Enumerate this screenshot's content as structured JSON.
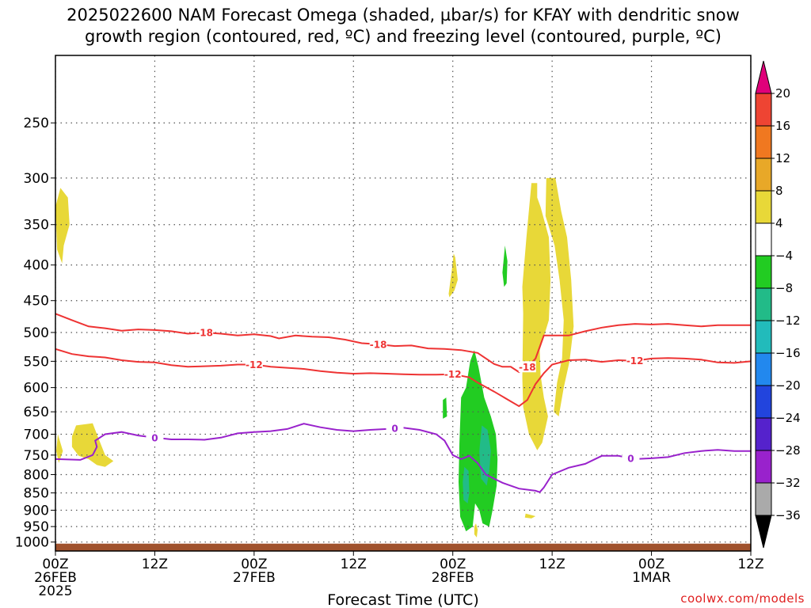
{
  "chart_data": {
    "type": "time-pressure cross-section",
    "title": [
      "2025022600 NAM Forecast Omega (shaded, µbar/s) for KFAY with dendritic snow",
      "growth region (contoured, red, ºC) and freezing level (contoured, purple, ºC)"
    ],
    "xlabel": "Forecast Time (UTC)",
    "credit": "coolwx.com/models",
    "x_range_hours": [
      0,
      84
    ],
    "y_range_hpa": [
      200,
      1030
    ],
    "y_scale": "log",
    "x_ticks": [
      {
        "h": 0,
        "l1": "00Z",
        "l2": "26FEB",
        "l3": "2025"
      },
      {
        "h": 12,
        "l1": "12Z",
        "l2": "",
        "l3": ""
      },
      {
        "h": 24,
        "l1": "00Z",
        "l2": "27FEB",
        "l3": ""
      },
      {
        "h": 36,
        "l1": "12Z",
        "l2": "",
        "l3": ""
      },
      {
        "h": 48,
        "l1": "00Z",
        "l2": "28FEB",
        "l3": ""
      },
      {
        "h": 60,
        "l1": "12Z",
        "l2": "",
        "l3": ""
      },
      {
        "h": 72,
        "l1": "00Z",
        "l2": "1MAR",
        "l3": ""
      },
      {
        "h": 84,
        "l1": "12Z",
        "l2": "",
        "l3": ""
      }
    ],
    "y_ticks": [
      250,
      300,
      350,
      400,
      450,
      500,
      550,
      600,
      650,
      700,
      750,
      800,
      850,
      900,
      950,
      1000
    ],
    "grid": true,
    "colorbar": {
      "labels": [
        "20",
        "16",
        "12",
        "8",
        "4",
        "−4",
        "−8",
        "−12",
        "−16",
        "−20",
        "−24",
        "−28",
        "−32",
        "−36"
      ],
      "bins": [
        {
          "color": "#e0007a",
          "shape": "arrow-up"
        },
        {
          "color": "#ee4433"
        },
        {
          "color": "#f07820"
        },
        {
          "color": "#e8a828"
        },
        {
          "color": "#e8d838"
        },
        {
          "color": "#ffffff"
        },
        {
          "color": "#22cc22"
        },
        {
          "color": "#22bb88"
        },
        {
          "color": "#22bbbb"
        },
        {
          "color": "#2288ee"
        },
        {
          "color": "#2244dd"
        },
        {
          "color": "#5522cc"
        },
        {
          "color": "#9922cc"
        },
        {
          "color": "#aaaaaa"
        },
        {
          "color": "#000000",
          "shape": "arrow-down"
        }
      ]
    },
    "ground": {
      "p_hpa": 1000,
      "color": "#a0522d"
    },
    "contours": [
      {
        "label": "-18",
        "color": "#ee3333",
        "labels_at_h": [
          18,
          39,
          57
        ],
        "points": [
          [
            0,
            470
          ],
          [
            2,
            480
          ],
          [
            4,
            490
          ],
          [
            6,
            493
          ],
          [
            8,
            497
          ],
          [
            10,
            495
          ],
          [
            12,
            496
          ],
          [
            14,
            498
          ],
          [
            16,
            502
          ],
          [
            18,
            500
          ],
          [
            20,
            502
          ],
          [
            22,
            505
          ],
          [
            24,
            503
          ],
          [
            26,
            506
          ],
          [
            27,
            510
          ],
          [
            29,
            505
          ],
          [
            31,
            507
          ],
          [
            33,
            508
          ],
          [
            35,
            512
          ],
          [
            37,
            518
          ],
          [
            39,
            520
          ],
          [
            41,
            523
          ],
          [
            43,
            522
          ],
          [
            45,
            527
          ],
          [
            47,
            528
          ],
          [
            49,
            530
          ],
          [
            51,
            535
          ],
          [
            53,
            555
          ],
          [
            54,
            560
          ],
          [
            55,
            560
          ],
          [
            56,
            570
          ],
          [
            57,
            560
          ],
          [
            58,
            545
          ],
          [
            59,
            505
          ],
          [
            60,
            505
          ],
          [
            62,
            505
          ],
          [
            64,
            498
          ],
          [
            66,
            492
          ],
          [
            68,
            488
          ],
          [
            70,
            486
          ],
          [
            72,
            487
          ],
          [
            74,
            486
          ],
          [
            76,
            488
          ],
          [
            78,
            490
          ],
          [
            80,
            488
          ],
          [
            82,
            488
          ],
          [
            84,
            488
          ]
        ]
      },
      {
        "label": "-12",
        "color": "#ee3333",
        "labels_at_h": [
          24,
          48,
          70
        ],
        "points": [
          [
            0,
            528
          ],
          [
            2,
            537
          ],
          [
            4,
            541
          ],
          [
            6,
            543
          ],
          [
            8,
            548
          ],
          [
            10,
            551
          ],
          [
            12,
            552
          ],
          [
            14,
            557
          ],
          [
            16,
            560
          ],
          [
            18,
            559
          ],
          [
            20,
            558
          ],
          [
            22,
            556
          ],
          [
            24,
            556
          ],
          [
            26,
            560
          ],
          [
            28,
            562
          ],
          [
            30,
            564
          ],
          [
            32,
            568
          ],
          [
            34,
            571
          ],
          [
            36,
            573
          ],
          [
            38,
            572
          ],
          [
            40,
            573
          ],
          [
            42,
            574
          ],
          [
            44,
            575
          ],
          [
            46,
            575
          ],
          [
            48,
            574
          ],
          [
            50,
            580
          ],
          [
            51,
            590
          ],
          [
            53,
            608
          ],
          [
            55,
            628
          ],
          [
            56,
            638
          ],
          [
            57,
            625
          ],
          [
            58,
            593
          ],
          [
            59,
            572
          ],
          [
            60,
            556
          ],
          [
            62,
            548
          ],
          [
            64,
            547
          ],
          [
            66,
            551
          ],
          [
            68,
            548
          ],
          [
            70,
            549
          ],
          [
            72,
            545
          ],
          [
            74,
            544
          ],
          [
            76,
            545
          ],
          [
            78,
            547
          ],
          [
            80,
            552
          ],
          [
            82,
            553
          ],
          [
            84,
            550
          ]
        ]
      },
      {
        "label": "0",
        "color": "#9922cc",
        "labels_at_h": [
          12,
          41,
          69.5
        ],
        "points": [
          [
            0,
            760
          ],
          [
            3,
            762
          ],
          [
            4.5,
            750
          ],
          [
            5,
            730
          ],
          [
            4.8,
            715
          ],
          [
            6,
            700
          ],
          [
            8,
            695
          ],
          [
            10,
            703
          ],
          [
            12,
            708
          ],
          [
            14,
            712
          ],
          [
            16,
            712
          ],
          [
            18,
            713
          ],
          [
            20,
            708
          ],
          [
            22,
            698
          ],
          [
            24,
            695
          ],
          [
            26,
            693
          ],
          [
            28,
            688
          ],
          [
            30,
            676
          ],
          [
            32,
            684
          ],
          [
            34,
            690
          ],
          [
            36,
            693
          ],
          [
            38,
            690
          ],
          [
            40,
            688
          ],
          [
            42,
            685
          ],
          [
            44,
            690
          ],
          [
            46,
            700
          ],
          [
            47,
            715
          ],
          [
            48,
            750
          ],
          [
            49,
            760
          ],
          [
            50,
            752
          ],
          [
            51,
            770
          ],
          [
            52,
            800
          ],
          [
            54,
            822
          ],
          [
            56,
            838
          ],
          [
            58,
            844
          ],
          [
            58.5,
            848
          ],
          [
            59,
            835
          ],
          [
            60,
            800
          ],
          [
            62,
            782
          ],
          [
            64,
            772
          ],
          [
            66,
            752
          ],
          [
            68,
            752
          ],
          [
            70,
            760
          ],
          [
            72,
            758
          ],
          [
            74,
            755
          ],
          [
            76,
            745
          ],
          [
            78,
            740
          ],
          [
            80,
            737
          ],
          [
            82,
            740
          ],
          [
            84,
            740
          ]
        ]
      }
    ],
    "omega_regions": [
      {
        "color": "#e8d838",
        "points": [
          [
            0,
            330
          ],
          [
            0.6,
            310
          ],
          [
            1.5,
            320
          ],
          [
            1.7,
            350
          ],
          [
            1.0,
            375
          ],
          [
            0.8,
            398
          ],
          [
            0.2,
            380
          ]
        ]
      },
      {
        "color": "#e8d838",
        "points": [
          [
            0.3,
            700
          ],
          [
            0.9,
            740
          ],
          [
            0.4,
            770
          ],
          [
            0.1,
            740
          ]
        ]
      },
      {
        "color": "#e8d838",
        "points": [
          [
            2,
            705
          ],
          [
            2.5,
            680
          ],
          [
            4.5,
            675
          ],
          [
            5,
            700
          ],
          [
            6,
            750
          ],
          [
            7,
            765
          ],
          [
            6,
            780
          ],
          [
            5,
            775
          ],
          [
            4,
            760
          ],
          [
            2.8,
            752
          ],
          [
            2,
            730
          ]
        ]
      },
      {
        "color": "#e8d838",
        "points": [
          [
            47.6,
            445
          ],
          [
            48.2,
            435
          ],
          [
            48.6,
            420
          ],
          [
            48.3,
            390
          ],
          [
            48.1,
            385
          ],
          [
            47.9,
            405
          ],
          [
            47.5,
            440
          ]
        ]
      },
      {
        "color": "#e8d838",
        "points": [
          [
            56.5,
            470
          ],
          [
            56.4,
            430
          ],
          [
            56.9,
            365
          ],
          [
            57.5,
            305
          ],
          [
            58.2,
            305
          ],
          [
            58.2,
            320
          ],
          [
            58.6,
            330
          ],
          [
            59.6,
            365
          ],
          [
            59.8,
            420
          ],
          [
            59.6,
            480
          ],
          [
            58.5,
            530
          ],
          [
            58.6,
            575
          ],
          [
            59,
            620
          ],
          [
            59.5,
            660
          ],
          [
            58.8,
            720
          ],
          [
            58.2,
            738
          ],
          [
            57.2,
            700
          ],
          [
            56.5,
            640
          ],
          [
            56.4,
            580
          ]
        ]
      },
      {
        "color": "#e8d838",
        "points": [
          [
            59.2,
            340
          ],
          [
            59.3,
            300
          ],
          [
            60.4,
            300
          ],
          [
            61.1,
            335
          ],
          [
            61.8,
            365
          ],
          [
            62.3,
            420
          ],
          [
            62.6,
            490
          ],
          [
            62.1,
            550
          ],
          [
            61.4,
            600
          ],
          [
            60.8,
            660
          ],
          [
            60.2,
            650
          ],
          [
            60.6,
            590
          ],
          [
            61.2,
            545
          ],
          [
            61.4,
            480
          ],
          [
            60.9,
            420
          ],
          [
            60.3,
            375
          ]
        ]
      },
      {
        "color": "#e8d838",
        "points": [
          [
            56.8,
            910
          ],
          [
            58,
            918
          ],
          [
            57.5,
            925
          ],
          [
            56.7,
            922
          ]
        ]
      },
      {
        "color": "#22cc22",
        "points": [
          [
            51,
            590
          ],
          [
            51,
            655
          ],
          [
            52,
            665
          ],
          [
            52,
            735
          ],
          [
            51.2,
            720
          ],
          [
            51.2,
            690
          ],
          [
            50.8,
            660
          ],
          [
            50.8,
            610
          ]
        ]
      },
      {
        "color": "#22cc22",
        "points": [
          [
            54,
            410
          ],
          [
            54.3,
            375
          ],
          [
            54.6,
            395
          ],
          [
            54.5,
            425
          ],
          [
            54.2,
            430
          ]
        ]
      },
      {
        "color": "#22cc22",
        "points": [
          [
            46.8,
            625
          ],
          [
            47.2,
            620
          ],
          [
            47.3,
            660
          ],
          [
            46.8,
            665
          ]
        ]
      },
      {
        "color": "#22cc22",
        "points": [
          [
            49,
            620
          ],
          [
            49.6,
            600
          ],
          [
            50.1,
            550
          ],
          [
            50.6,
            530
          ],
          [
            51.1,
            560
          ],
          [
            51.8,
            620
          ],
          [
            52.6,
            660
          ],
          [
            53.2,
            700
          ],
          [
            53.4,
            760
          ],
          [
            53.3,
            830
          ],
          [
            52.8,
            900
          ],
          [
            52.4,
            950
          ],
          [
            51.6,
            940
          ],
          [
            51.2,
            900
          ],
          [
            50.7,
            880
          ],
          [
            50.4,
            950
          ],
          [
            49.6,
            965
          ],
          [
            48.9,
            920
          ],
          [
            48.7,
            820
          ],
          [
            48.8,
            720
          ]
        ]
      },
      {
        "color": "#22bb88",
        "points": [
          [
            51.5,
            680
          ],
          [
            52.2,
            690
          ],
          [
            52.6,
            740
          ],
          [
            52.4,
            790
          ],
          [
            52.1,
            830
          ],
          [
            51.4,
            810
          ],
          [
            51.2,
            740
          ]
        ]
      },
      {
        "color": "#22bb88",
        "points": [
          [
            49.4,
            780
          ],
          [
            49.9,
            790
          ],
          [
            50,
            850
          ],
          [
            49.8,
            880
          ],
          [
            49.3,
            870
          ],
          [
            49.2,
            820
          ]
        ]
      },
      {
        "color": "#e8d838",
        "points": [
          [
            50.8,
            940
          ],
          [
            51,
            960
          ],
          [
            50.9,
            985
          ],
          [
            50.6,
            975
          ],
          [
            50.6,
            950
          ]
        ]
      }
    ]
  }
}
